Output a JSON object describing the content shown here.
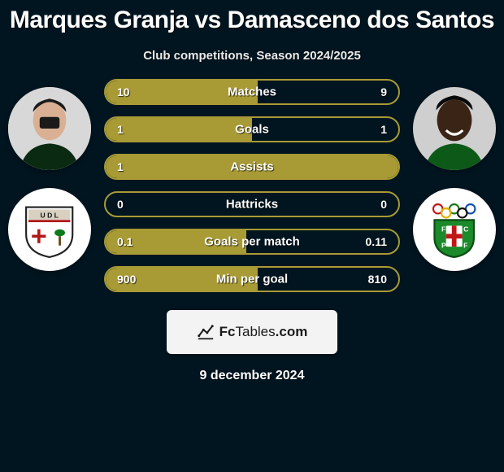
{
  "title": "Marques Granja vs Damasceno dos Santos",
  "subtitle": "Club competitions, Season 2024/2025",
  "date": "9 december 2024",
  "watermark": {
    "brand_prefix": "Fc",
    "brand_main": "Tables",
    "brand_suffix": ".com"
  },
  "colors": {
    "background": "#011520",
    "bar_border": "#a89a34",
    "bar_fill": "#a89a34",
    "text": "#ffffff"
  },
  "left": {
    "avatar_bg": "#e0e0e0",
    "badge_svg": "udl"
  },
  "right": {
    "avatar_bg": "#2b2b2b",
    "badge_svg": "fcpf"
  },
  "stats": [
    {
      "label": "Matches",
      "left_val": "10",
      "right_val": "9",
      "fill_pct": 52
    },
    {
      "label": "Goals",
      "left_val": "1",
      "right_val": "1",
      "fill_pct": 50
    },
    {
      "label": "Assists",
      "left_val": "1",
      "right_val": "",
      "fill_pct": 100
    },
    {
      "label": "Hattricks",
      "left_val": "0",
      "right_val": "0",
      "fill_pct": 0
    },
    {
      "label": "Goals per match",
      "left_val": "0.1",
      "right_val": "0.11",
      "fill_pct": 48
    },
    {
      "label": "Min per goal",
      "left_val": "900",
      "right_val": "810",
      "fill_pct": 52
    }
  ]
}
